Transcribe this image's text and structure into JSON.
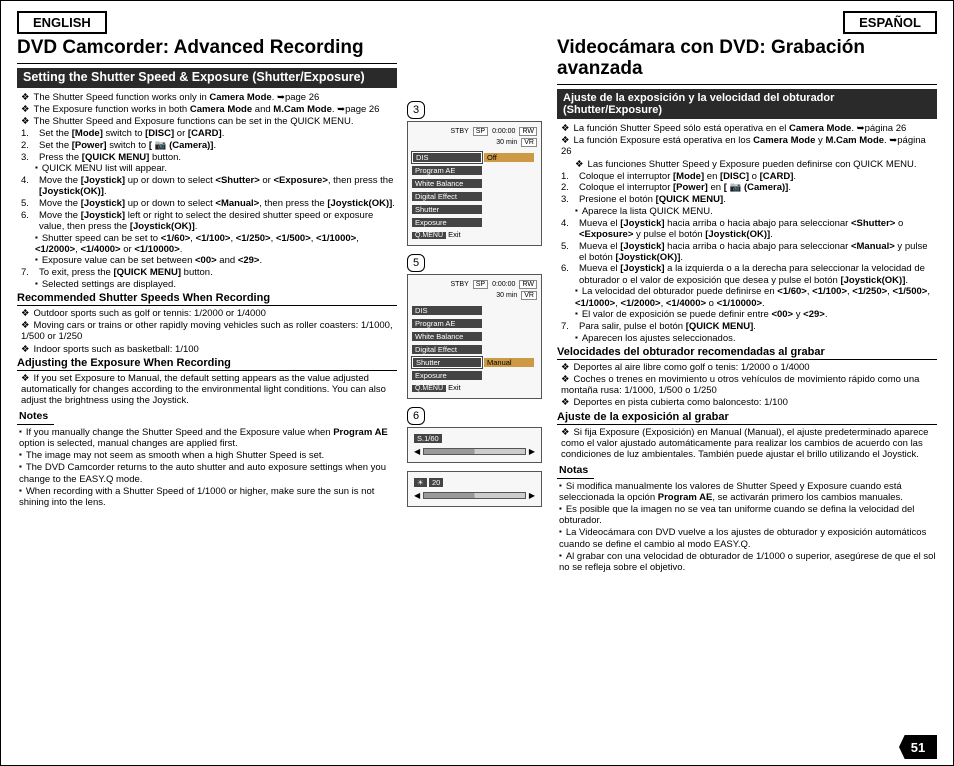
{
  "lang_en": "ENGLISH",
  "lang_es": "ESPAÑOL",
  "page_number": "51",
  "en": {
    "title": "DVD Camcorder: Advanced Recording",
    "subbar": "Setting the Shutter Speed & Exposure (Shutter/Exposure)",
    "intro1": "The Shutter Speed function works only in <b>Camera Mode</b>. ➥page 26",
    "intro2": "The Exposure function works in both <b>Camera Mode</b> and <b>M.Cam Mode</b>. ➥page 26",
    "intro3": "The Shutter Speed and Exposure functions can be set in the QUICK MENU.",
    "s1": "Set the <b>[Mode]</b> switch to <b>[DISC]</b> or <b>[CARD]</b>.",
    "s2": "Set the <b>[Power]</b> switch to <b>[ 📷 (Camera)]</b>.",
    "s3": "Press the <b>[QUICK MENU]</b> button.",
    "s3a": "QUICK MENU list will appear.",
    "s4": "Move the <b>[Joystick]</b> up or down to select <b>&lt;Shutter&gt;</b> or <b>&lt;Exposure&gt;</b>, then press the <b>[Joystick(OK)]</b>.",
    "s5": "Move the <b>[Joystick]</b> up or down to select <b>&lt;Manual&gt;</b>, then press the <b>[Joystick(OK)]</b>.",
    "s6": "Move the <b>[Joystick]</b> left or right to select the desired shutter speed or exposure value, then press the <b>[Joystick(OK)]</b>.",
    "s6a": "Shutter speed can be set to <b>&lt;1/60&gt;</b>, <b>&lt;1/100&gt;</b>, <b>&lt;1/250&gt;</b>, <b>&lt;1/500&gt;</b>, <b>&lt;1/1000&gt;</b>, <b>&lt;1/2000&gt;</b>, <b>&lt;1/4000&gt;</b> or <b>&lt;1/10000&gt;</b>.",
    "s6b": "Exposure value can be set between <b>&lt;00&gt;</b> and <b>&lt;29&gt;</b>.",
    "s7": "To exit, press the <b>[QUICK MENU]</b> button.",
    "s7a": "Selected settings are displayed.",
    "rec_h": "Recommended Shutter Speeds When Recording",
    "rec1": "Outdoor sports such as golf or tennis: 1/2000 or 1/4000",
    "rec2": "Moving cars or trains or other rapidly moving vehicles such as roller coasters: 1/1000, 1/500 or 1/250",
    "rec3": "Indoor sports such as basketball: 1/100",
    "adj_h": "Adjusting the Exposure When Recording",
    "adj1": "If you set Exposure to Manual, the default setting appears as the value adjusted automatically for changes according to the environmental light conditions. You can also adjust the brightness using the Joystick.",
    "notes_h": "Notes",
    "n1": "If you manually change the Shutter Speed and the Exposure value when <b>Program AE</b> option is selected, manual changes are applied first.",
    "n2": "The image may not seem as smooth when a high Shutter Speed is set.",
    "n3": "The DVD Camcorder returns to the auto shutter and auto exposure settings when you change to the EASY.Q mode.",
    "n4": "When recording with a Shutter Speed of 1/1000 or higher, make sure the sun is not shining into the lens."
  },
  "es": {
    "title": "Videocámara con DVD: Grabación avanzada",
    "subbar": "Ajuste de la exposición y la velocidad del obturador (Shutter/Exposure)",
    "intro1": "La función Shutter Speed sólo está operativa en el <b>Camera Mode</b>. ➥página 26",
    "intro2": "La función Exposure está operativa en los <b>Camera Mode</b> y <b>M.Cam Mode</b>. ➥página 26",
    "intro3": "Las funciones Shutter Speed y Exposure pueden definirse con QUICK MENU.",
    "s1": "Coloque el interruptor <b>[Mode]</b> en <b>[DISC]</b> o <b>[CARD]</b>.",
    "s2": "Coloque el interruptor <b>[Power]</b> en <b>[ 📷 (Camera)]</b>.",
    "s3": "Presione el botón <b>[QUICK MENU]</b>.",
    "s3a": "Aparece la lista QUICK MENU.",
    "s4": "Mueva el <b>[Joystick]</b> hacia arriba o hacia abajo para seleccionar <b>&lt;Shutter&gt;</b> o <b>&lt;Exposure&gt;</b> y pulse el botón <b>[Joystick(OK)]</b>.",
    "s5": "Mueva el <b>[Joystick]</b> hacia arriba o hacia abajo para seleccionar <b>&lt;Manual&gt;</b> y pulse el botón <b>[Joystick(OK)]</b>.",
    "s6": "Mueva el <b>[Joystick]</b> a la izquierda o a la derecha para seleccionar la velocidad de obturador o el valor de exposición que desea y pulse el botón <b>[Joystick(OK)]</b>.",
    "s6a": "La velocidad del obturador puede definirse en <b>&lt;1/60&gt;</b>, <b>&lt;1/100&gt;</b>, <b>&lt;1/250&gt;</b>, <b>&lt;1/500&gt;</b>, <b>&lt;1/1000&gt;</b>, <b>&lt;1/2000&gt;</b>, <b>&lt;1/4000&gt;</b> o <b>&lt;1/10000&gt;</b>.",
    "s6b": "El valor de exposición se puede definir entre <b>&lt;00&gt;</b> y <b>&lt;29&gt;</b>.",
    "s7": "Para salir, pulse el botón <b>[QUICK MENU]</b>.",
    "s7a": "Aparecen los ajustes seleccionados.",
    "rec_h": "Velocidades del obturador recomendadas al grabar",
    "rec1": "Deportes al aire libre como golf o tenis: 1/2000 o 1/4000",
    "rec2": "Coches o trenes en movimiento u otros vehículos de movimiento rápido como una montaña rusa: 1/1000, 1/500 o 1/250",
    "rec3": "Deportes en pista cubierta como baloncesto: 1/100",
    "adj_h": "Ajuste de la exposición al grabar",
    "adj1": "Si fija Exposure (Exposición) en Manual (Manual), el ajuste predeterminado aparece como el valor ajustado automáticamente para realizar los cambios de acuerdo con las condiciones de luz ambientales. También puede ajustar el brillo utilizando el Joystick.",
    "notes_h": "Notas",
    "n1": "Si modifica manualmente los valores de Shutter Speed y Exposure cuando está seleccionada la opción <b>Program AE</b>, se activarán primero los cambios manuales.",
    "n2": "Es posible que la imagen no se vea tan uniforme cuando se defina la velocidad del obturador.",
    "n3": "La Videocámara con DVD vuelve a los ajustes de obturador y exposición automáticos cuando se define el cambio al modo EASY.Q.",
    "n4": "Al grabar con una velocidad de obturador de 1/1000 o superior, asegúrese de que el sol no se refleja sobre el objetivo."
  },
  "screens": {
    "badge3": "3",
    "badge5": "5",
    "badge6": "6",
    "stby": "STBY",
    "sp": "SP",
    "time": "0:00:00",
    "rw": "RW",
    "min": "30 min",
    "vr": "VR",
    "menu_items": [
      "DIS",
      "Program AE",
      "White Balance",
      "Digital Effect",
      "Shutter",
      "Exposure"
    ],
    "off": "Off",
    "manual": "Manual",
    "qmenu": "Q.MENU",
    "exit": "Exit",
    "s_label": "S.1/60",
    "exp_label": "20"
  }
}
